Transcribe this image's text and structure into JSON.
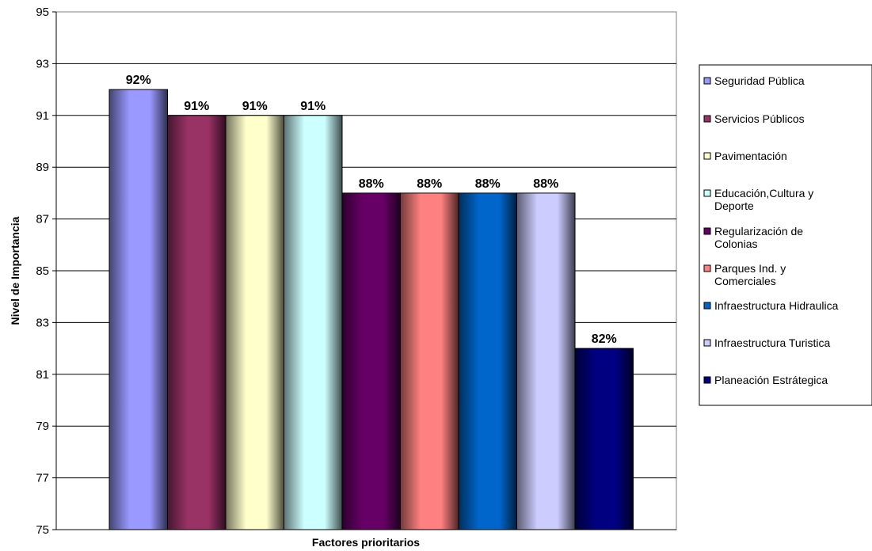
{
  "chart_data": {
    "type": "bar",
    "title": "",
    "xlabel": "Factores prioritarios",
    "ylabel": "Nivel de Importancia",
    "ylim": [
      75,
      95
    ],
    "yticks": [
      75,
      77,
      79,
      81,
      83,
      85,
      87,
      89,
      91,
      93,
      95
    ],
    "grid": true,
    "legend_position": "right",
    "series": [
      {
        "name": "Seguridad Pública",
        "legend_lines": [
          "Seguridad Pública"
        ],
        "value": 92,
        "label": "92%",
        "color": "#9999FF"
      },
      {
        "name": "Servicios Públicos",
        "legend_lines": [
          "Servicios Públicos"
        ],
        "value": 91,
        "label": "91%",
        "color": "#993366"
      },
      {
        "name": "Pavimentación",
        "legend_lines": [
          "Pavimentación"
        ],
        "value": 91,
        "label": "91%",
        "color": "#FFFFCC"
      },
      {
        "name": "Educación,Cultura y Deporte",
        "legend_lines": [
          "Educación,Cultura y",
          "Deporte"
        ],
        "value": 91,
        "label": "91%",
        "color": "#CCFFFF"
      },
      {
        "name": "Regularización de Colonias",
        "legend_lines": [
          "Regularización de",
          "Colonias"
        ],
        "value": 88,
        "label": "88%",
        "color": "#660066"
      },
      {
        "name": "Parques Ind. y Comerciales",
        "legend_lines": [
          "Parques Ind. y",
          "Comerciales"
        ],
        "value": 88,
        "label": "88%",
        "color": "#FF8080"
      },
      {
        "name": "Infraestructura Hidraulica",
        "legend_lines": [
          "Infraestructura Hidraulica"
        ],
        "value": 88,
        "label": "88%",
        "color": "#0066CC"
      },
      {
        "name": "Infraestructura Turistica",
        "legend_lines": [
          "Infraestructura Turistica"
        ],
        "value": 88,
        "label": "88%",
        "color": "#CCCCFF"
      },
      {
        "name": "Planeación Estrátegica",
        "legend_lines": [
          "Planeación Estrátegica"
        ],
        "value": 82,
        "label": "82%",
        "color": "#000080"
      }
    ]
  }
}
